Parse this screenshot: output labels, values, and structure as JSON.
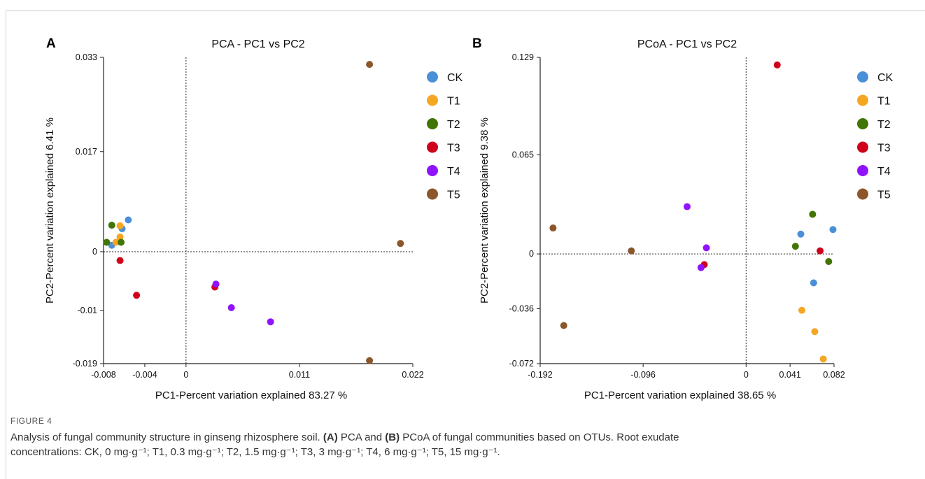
{
  "panels": [
    {
      "letter": "A",
      "colors": {
        "CK": "#4a90d9",
        "T1": "#f5a623",
        "T2": "#417505",
        "T3": "#d0021b",
        "T4": "#9013fe",
        "T5": "#8b572a"
      }
    },
    {
      "letter": "B",
      "colors": {
        "CK": "#4a90d9",
        "T1": "#f5a623",
        "T2": "#417505",
        "T3": "#d0021b",
        "T4": "#9013fe",
        "T5": "#8b572a"
      }
    }
  ],
  "chart_data": [
    {
      "type": "scatter",
      "title": "PCA - PC1 vs PC2",
      "xlabel": "PC1-Percent variation explained 83.27 %",
      "ylabel": "PC2-Percent variation explained 6.41 %",
      "xlim": [
        -0.008,
        0.022
      ],
      "ylim": [
        -0.019,
        0.033
      ],
      "xticks": [
        "-0.008",
        "-0.004",
        "0",
        "0.011",
        "0.022"
      ],
      "yticks": [
        "0.033",
        "0.017",
        "0",
        "-0.01",
        "-0.019"
      ],
      "ref_lines": {
        "x": 0,
        "y": 0
      },
      "legend": "right",
      "series": [
        {
          "name": "CK",
          "points": [
            [
              -0.0056,
              0.0054
            ],
            [
              -0.0062,
              0.0039
            ],
            [
              -0.0072,
              0.0011
            ]
          ]
        },
        {
          "name": "T1",
          "points": [
            [
              -0.0064,
              0.0044
            ],
            [
              -0.0064,
              0.0025
            ],
            [
              -0.0068,
              0.0016
            ]
          ]
        },
        {
          "name": "T2",
          "points": [
            [
              -0.0072,
              0.0045
            ],
            [
              -0.0077,
              0.0016
            ],
            [
              -0.0063,
              0.0016
            ]
          ]
        },
        {
          "name": "T3",
          "points": [
            [
              -0.0064,
              -0.0015
            ],
            [
              -0.0048,
              -0.0074
            ],
            [
              0.0028,
              -0.006
            ]
          ]
        },
        {
          "name": "T4",
          "points": [
            [
              0.0029,
              -0.0055
            ],
            [
              0.0044,
              -0.0095
            ],
            [
              0.0082,
              -0.0119
            ]
          ]
        },
        {
          "name": "T5",
          "points": [
            [
              0.0178,
              0.0318
            ],
            [
              0.0208,
              0.0014
            ],
            [
              0.0178,
              -0.0185
            ]
          ]
        }
      ]
    },
    {
      "type": "scatter",
      "title": "PCoA - PC1 vs PC2",
      "xlabel": "PC1-Percent variation explained 38.65 %",
      "ylabel": "PC2-Percent variation explained 9.38 %",
      "xlim": [
        -0.192,
        0.082
      ],
      "ylim": [
        -0.072,
        0.129
      ],
      "xticks": [
        "-0.192",
        "-0.096",
        "0",
        "0.041",
        "0.082"
      ],
      "yticks": [
        "0.129",
        "0.065",
        "0",
        "-0.036",
        "-0.072"
      ],
      "ref_lines": {
        "x": 0,
        "y": 0
      },
      "legend": "right",
      "series": [
        {
          "name": "CK",
          "points": [
            [
              0.081,
              0.016
            ],
            [
              0.051,
              0.013
            ],
            [
              0.063,
              -0.019
            ]
          ]
        },
        {
          "name": "T1",
          "points": [
            [
              0.052,
              -0.037
            ],
            [
              0.064,
              -0.051
            ],
            [
              0.072,
              -0.069
            ]
          ]
        },
        {
          "name": "T2",
          "points": [
            [
              0.062,
              0.026
            ],
            [
              0.046,
              0.005
            ],
            [
              0.077,
              -0.005
            ]
          ]
        },
        {
          "name": "T3",
          "points": [
            [
              0.029,
              0.124
            ],
            [
              0.069,
              0.002
            ],
            [
              -0.039,
              -0.007
            ]
          ]
        },
        {
          "name": "T4",
          "points": [
            [
              -0.055,
              0.031
            ],
            [
              -0.037,
              0.004
            ],
            [
              -0.042,
              -0.009
            ]
          ]
        },
        {
          "name": "T5",
          "points": [
            [
              -0.18,
              0.017
            ],
            [
              -0.107,
              0.002
            ],
            [
              -0.17,
              -0.047
            ]
          ]
        }
      ]
    }
  ],
  "caption": {
    "heading": "FIGURE 4",
    "line1_prefix": "Analysis of fungal community structure in ginseng rhizosphere soil.",
    "label_a": "(A)",
    "mid1": "PCA and",
    "label_b": "(B)",
    "line1_suffix": "PCoA of fungal communities based on OTUs. Root exudate",
    "line2": "concentrations: CK, 0 mg·g⁻¹; T1, 0.3 mg·g⁻¹; T2, 1.5 mg·g⁻¹; T3, 3 mg·g⁻¹; T4, 6 mg·g⁻¹; T5, 15 mg·g⁻¹."
  }
}
